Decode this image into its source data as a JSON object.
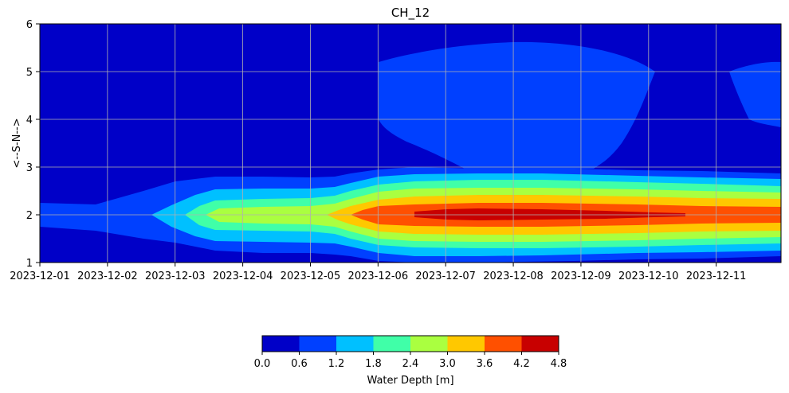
{
  "chart_data": {
    "type": "heatmap",
    "title": "CH_12",
    "xlabel": "",
    "ylabel": "<--S-N-->",
    "x_tick_labels": [
      "2023-12-01",
      "2023-12-02",
      "2023-12-03",
      "2023-12-04",
      "2023-12-05",
      "2023-12-06",
      "2023-12-07",
      "2023-12-08",
      "2023-12-09",
      "2023-12-10",
      "2023-12-11"
    ],
    "xlim": [
      "2023-12-01",
      "2023-12-11T23:00"
    ],
    "y_ticks": [
      1,
      2,
      3,
      4,
      5,
      6
    ],
    "ylim": [
      1,
      6
    ],
    "grid": true,
    "colorbar": {
      "label": "Water Depth [m]",
      "levels": [
        0.0,
        0.6,
        1.2,
        1.8,
        2.4,
        3.0,
        3.6,
        4.2,
        4.8
      ],
      "level_labels": [
        "0.0",
        "0.6",
        "1.2",
        "1.8",
        "2.4",
        "3.0",
        "3.6",
        "4.2",
        "4.8"
      ],
      "colors": [
        "#0000c8",
        "#0040ff",
        "#00c0ff",
        "#40ffa8",
        "#aaff40",
        "#ffc800",
        "#ff5000",
        "#c80000"
      ],
      "placement": "bottom"
    },
    "series": [
      {
        "y_center": 2.0,
        "profile": [
          {
            "x": "2023-12-01",
            "peak": 0.9,
            "half_width": 0.28
          },
          {
            "x": "2023-12-02T12:00",
            "peak": 1.1,
            "half_width": 0.35
          },
          {
            "x": "2023-12-03T00:00",
            "peak": 1.9,
            "half_width": 0.45
          },
          {
            "x": "2023-12-04T00:00",
            "peak": 2.55,
            "half_width": 0.6
          },
          {
            "x": "2023-12-05T12:00",
            "peak": 3.1,
            "half_width": 0.65
          },
          {
            "x": "2023-12-06T00:00",
            "peak": 4.0,
            "half_width": 0.9
          },
          {
            "x": "2023-12-08T00:00",
            "peak": 4.8,
            "half_width": 0.95
          },
          {
            "x": "2023-12-09T12:00",
            "peak": 4.6,
            "half_width": 0.9
          },
          {
            "x": "2023-12-11T23:00",
            "peak": 4.4,
            "half_width": 0.8
          }
        ]
      }
    ],
    "secondary_regions": [
      {
        "x_start": "2023-12-06",
        "x_end": "2023-12-10",
        "y_min": 2.9,
        "y_max": 5.6,
        "depth_range": [
          0.6,
          1.2
        ]
      },
      {
        "x_start": "2023-12-11",
        "x_end": "2023-12-11T23:00",
        "y_min": 3.8,
        "y_max": 5.2,
        "depth_range": [
          0.6,
          1.2
        ]
      }
    ]
  }
}
